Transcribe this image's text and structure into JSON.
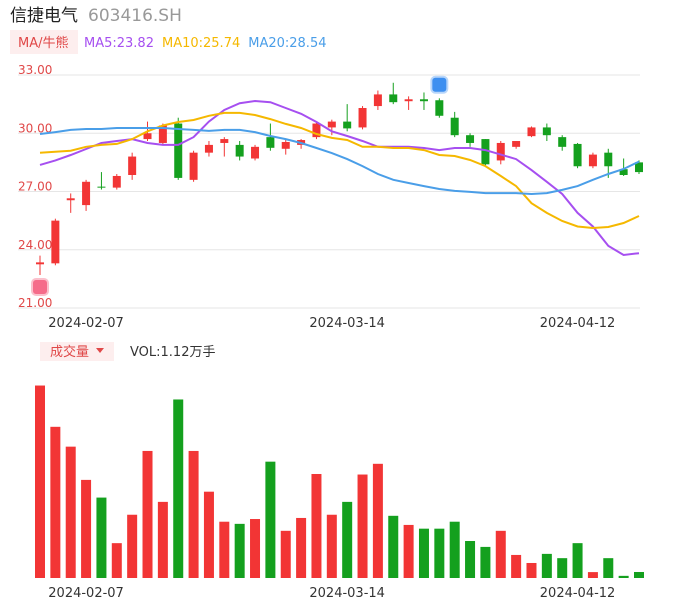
{
  "chart_data": [
    {
      "type": "candlestick",
      "title": "信捷电气",
      "subtitle": "603416.SH",
      "legend_title": "MA/牛熊",
      "categories": [
        null,
        null,
        null,
        "2024-02-07",
        null,
        null,
        null,
        null,
        null,
        null,
        null,
        null,
        null,
        null,
        null,
        null,
        null,
        null,
        null,
        null,
        "2024-03-14",
        null,
        null,
        null,
        null,
        null,
        null,
        null,
        null,
        null,
        null,
        null,
        null,
        null,
        null,
        "2024-04-12",
        null,
        null,
        null,
        null
      ],
      "open": [
        23.25,
        23.3,
        26.55,
        26.3,
        27.25,
        27.2,
        27.85,
        29.7,
        29.5,
        30.5,
        27.6,
        29.0,
        29.5,
        29.4,
        28.7,
        29.8,
        29.2,
        29.4,
        29.8,
        30.3,
        30.6,
        30.3,
        31.4,
        32.0,
        31.65,
        31.75,
        31.7,
        30.8,
        29.9,
        29.7,
        28.6,
        29.3,
        29.85,
        30.3,
        29.8,
        29.45,
        28.3,
        29.0,
        28.15,
        28.5
      ],
      "high": [
        23.7,
        25.6,
        26.9,
        27.6,
        28.0,
        27.9,
        29.0,
        30.6,
        30.5,
        30.8,
        29.1,
        29.6,
        29.8,
        29.6,
        29.4,
        30.5,
        29.7,
        29.7,
        30.6,
        30.7,
        31.5,
        31.4,
        32.2,
        32.6,
        31.9,
        32.1,
        31.8,
        31.1,
        30.0,
        29.7,
        29.6,
        29.6,
        30.35,
        30.5,
        29.9,
        29.5,
        29.0,
        29.2,
        28.7,
        28.6
      ],
      "low": [
        22.7,
        23.2,
        25.9,
        26.0,
        27.1,
        27.1,
        27.6,
        29.6,
        29.4,
        27.6,
        27.5,
        28.8,
        28.8,
        28.6,
        28.6,
        29.1,
        28.9,
        29.2,
        29.7,
        29.9,
        30.1,
        30.2,
        31.2,
        31.5,
        31.2,
        31.2,
        30.8,
        29.8,
        29.3,
        28.3,
        28.4,
        29.2,
        29.8,
        29.6,
        29.1,
        28.2,
        28.2,
        27.7,
        27.8,
        27.9
      ],
      "close": [
        23.35,
        25.5,
        26.65,
        27.5,
        27.2,
        27.8,
        28.8,
        30.0,
        30.4,
        27.7,
        29.0,
        29.4,
        29.7,
        28.8,
        29.3,
        29.25,
        29.55,
        29.65,
        30.5,
        30.6,
        30.25,
        31.3,
        32.0,
        31.6,
        31.75,
        31.65,
        30.9,
        29.9,
        29.5,
        28.4,
        29.5,
        29.6,
        30.3,
        29.9,
        29.3,
        28.3,
        28.9,
        28.3,
        27.85,
        28.0
      ],
      "up_color": "#f23535",
      "down_color": "#14a01e",
      "series": [
        {
          "name": "MA5:23.82",
          "color": "#a64ff0",
          "values": [
            28.37,
            28.6,
            28.88,
            29.19,
            29.5,
            29.6,
            29.7,
            29.5,
            29.4,
            29.4,
            29.8,
            30.6,
            31.2,
            31.55,
            31.66,
            31.6,
            31.3,
            31.0,
            30.58,
            30.1,
            29.86,
            29.6,
            29.3,
            29.3,
            29.3,
            29.24,
            29.13,
            29.24,
            29.24,
            29.13,
            28.9,
            28.67,
            28.1,
            27.5,
            26.87,
            25.9,
            25.2,
            24.2,
            23.73,
            23.82
          ]
        },
        {
          "name": "MA10:25.74",
          "color": "#f5b800",
          "values": [
            29.0,
            29.05,
            29.1,
            29.3,
            29.4,
            29.45,
            29.7,
            30.1,
            30.4,
            30.58,
            30.68,
            30.9,
            31.05,
            31.05,
            30.94,
            30.73,
            30.48,
            30.27,
            29.96,
            29.76,
            29.65,
            29.3,
            29.3,
            29.24,
            29.24,
            29.13,
            28.88,
            28.83,
            28.62,
            28.31,
            27.8,
            27.28,
            26.4,
            25.9,
            25.48,
            25.2,
            25.12,
            25.17,
            25.38,
            25.74
          ]
        },
        {
          "name": "MA20:28.54",
          "color": "#4a9ee8",
          "values": [
            29.96,
            30.06,
            30.17,
            30.22,
            30.22,
            30.27,
            30.27,
            30.27,
            30.27,
            30.22,
            30.17,
            30.12,
            30.17,
            30.17,
            30.06,
            29.86,
            29.7,
            29.5,
            29.24,
            28.98,
            28.67,
            28.31,
            27.9,
            27.6,
            27.44,
            27.28,
            27.13,
            27.03,
            26.98,
            26.92,
            26.92,
            26.92,
            26.87,
            26.92,
            27.08,
            27.28,
            27.6,
            27.9,
            28.16,
            28.54
          ]
        }
      ],
      "ylim": [
        21,
        33
      ],
      "yticks": [
        {
          "value": 21,
          "label": "21.00"
        },
        {
          "value": 24,
          "label": "24.00"
        },
        {
          "value": 27,
          "label": "27.00"
        },
        {
          "value": 30,
          "label": "30.00"
        },
        {
          "value": 33,
          "label": "33.00"
        }
      ],
      "grid": true
    },
    {
      "type": "bar",
      "title": "成交量",
      "label": "VOL:1.12万手",
      "values": [
        35.9,
        28.2,
        24.5,
        18.3,
        15.0,
        6.5,
        11.8,
        23.7,
        14.2,
        33.3,
        23.7,
        16.1,
        10.5,
        10.1,
        11.0,
        21.7,
        8.8,
        11.2,
        19.4,
        11.8,
        14.2,
        19.3,
        21.3,
        11.6,
        9.9,
        9.2,
        9.2,
        10.5,
        6.9,
        5.8,
        8.8,
        4.3,
        2.8,
        4.5,
        3.7,
        6.5,
        1.1,
        3.7,
        0.4,
        1.12
      ],
      "ylim": [
        0,
        36
      ]
    }
  ]
}
